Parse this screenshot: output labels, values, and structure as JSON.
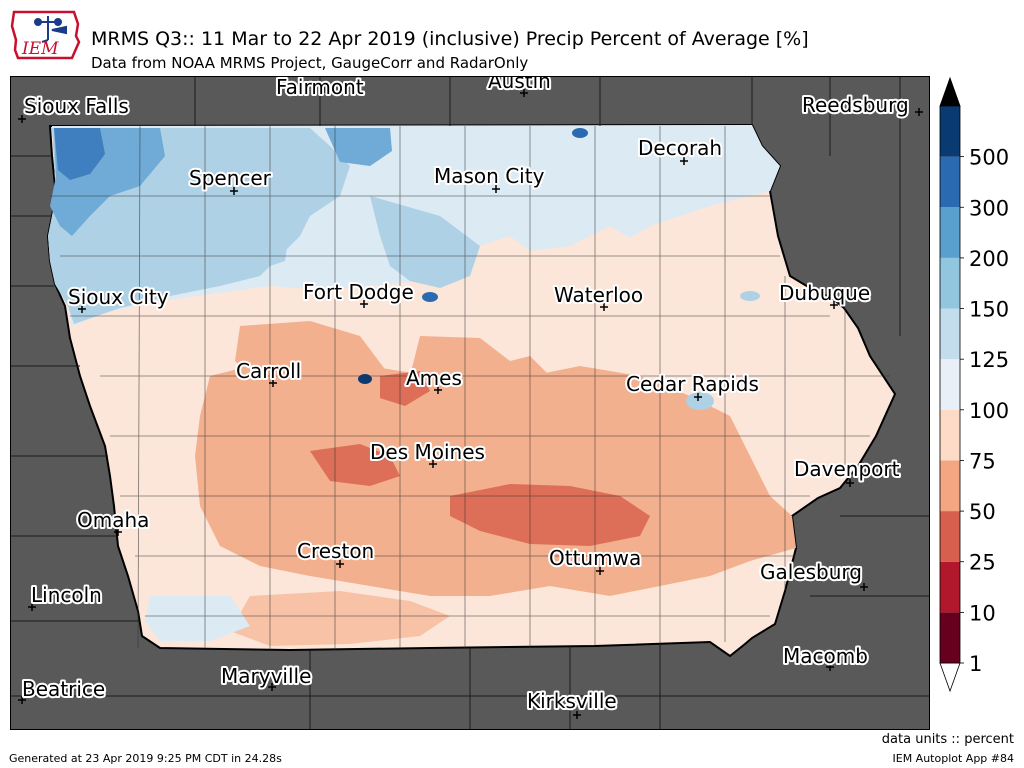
{
  "header": {
    "logo_text": "IEM",
    "title": "MRMS Q3:: 11 Mar to 22 Apr 2019 (inclusive) Precip Percent of Average [%]",
    "subtitle": "Data from NOAA MRMS Project, GaugeCorr and RadarOnly"
  },
  "map": {
    "cities": [
      {
        "name": "Sioux Falls"
      },
      {
        "name": "Fairmont"
      },
      {
        "name": "Austin"
      },
      {
        "name": "Reedsburg"
      },
      {
        "name": "Decorah"
      },
      {
        "name": "Spencer"
      },
      {
        "name": "Mason City"
      },
      {
        "name": "Sioux City"
      },
      {
        "name": "Fort Dodge"
      },
      {
        "name": "Waterloo"
      },
      {
        "name": "Dubuque"
      },
      {
        "name": "Carroll"
      },
      {
        "name": "Ames"
      },
      {
        "name": "Cedar Rapids"
      },
      {
        "name": "Des Moines"
      },
      {
        "name": "Davenport"
      },
      {
        "name": "Omaha"
      },
      {
        "name": "Creston"
      },
      {
        "name": "Ottumwa"
      },
      {
        "name": "Galesburg"
      },
      {
        "name": "Lincoln"
      },
      {
        "name": "Macomb"
      },
      {
        "name": "Maryville"
      },
      {
        "name": "Beatrice"
      },
      {
        "name": "Kirksville"
      }
    ]
  },
  "colorbar": {
    "levels": [
      "1",
      "10",
      "25",
      "50",
      "75",
      "100",
      "125",
      "150",
      "200",
      "300",
      "500"
    ],
    "colors": [
      "#67001f",
      "#b2182b",
      "#d6604d",
      "#f4a582",
      "#fddbc7",
      "#e8eff7",
      "#c3ddec",
      "#92c5de",
      "#5aa0cf",
      "#2a6ab1",
      "#0a3a72"
    ],
    "over_color": "#000000",
    "under_color": "#ffffff"
  },
  "footer": {
    "units": "data units :: percent",
    "generated": "Generated at 23 Apr 2019 9:25 PM CDT in 24.28s",
    "app": "IEM Autoplot App #84"
  }
}
